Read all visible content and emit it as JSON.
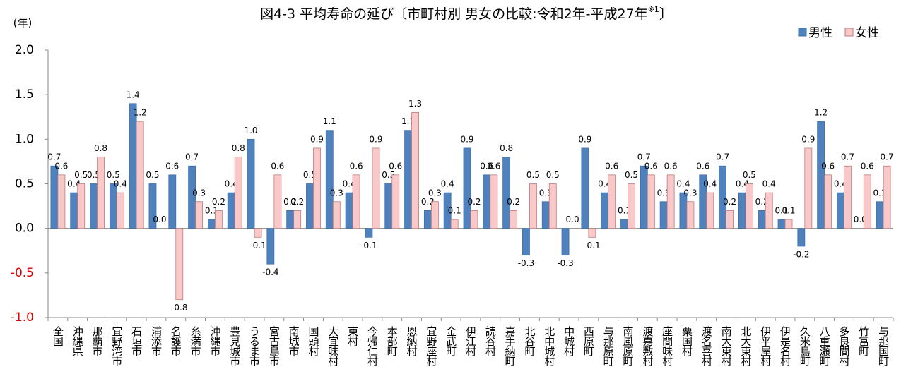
{
  "chart_data": {
    "type": "bar",
    "title": "図4-3 平均寿命の延び〔市町村別 男女の比較:令和2年-平成27年",
    "title_sup": "※1",
    "title_end": "〕",
    "y_label": "(年)",
    "categories": [
      "全国",
      "沖縄県",
      "那覇市",
      "宜野湾市",
      "石垣市",
      "浦添市",
      "名護市",
      "糸満市",
      "沖縄市",
      "豊見城市",
      "うるま市",
      "宮古島市",
      "南城市",
      "国頭村",
      "大宜味村",
      "東村",
      "今帰仁村",
      "本部町",
      "恩納村",
      "宜野座村",
      "金武町",
      "伊江村",
      "読谷村",
      "嘉手納町",
      "北谷町",
      "北中城村",
      "中城村",
      "西原町",
      "与那原町",
      "南風原町",
      "渡嘉敷村",
      "座間味村",
      "粟国村",
      "渡名喜村",
      "南大東村",
      "北大東村",
      "伊平屋村",
      "伊是名村",
      "久米島町",
      "八重瀬町",
      "多良間村",
      "竹富町",
      "与那国町"
    ],
    "series": [
      {
        "name": "男性",
        "color": "#4f81bd",
        "values": [
          0.7,
          0.4,
          0.5,
          0.5,
          1.4,
          0.5,
          0.6,
          0.7,
          0.1,
          0.4,
          1.0,
          -0.4,
          0.2,
          0.5,
          1.1,
          0.4,
          -0.1,
          0.5,
          1.1,
          0.2,
          0.4,
          0.9,
          0.6,
          0.8,
          -0.3,
          0.3,
          -0.3,
          0.9,
          0.4,
          0.1,
          0.7,
          0.3,
          0.4,
          0.6,
          0.7,
          0.4,
          0.2,
          0.1,
          -0.2,
          1.2,
          0.4,
          0.0,
          0.3
        ],
        "value_labels": [
          "0.7",
          "0.4",
          "0.5",
          "0.5",
          "1.4",
          "0.5",
          "0.6",
          "0.7",
          "0.1",
          "0.4",
          "1.0",
          "-0.4",
          "0.2",
          "0.5",
          "1.1",
          "0.4",
          "-0.1",
          "0.5",
          "1.1",
          "0.2",
          "0.4",
          "0.9",
          "0.6",
          "0.8",
          "-0.3",
          "0.3",
          "-0.3",
          "0.9",
          "0.4",
          "0.1",
          "0.7",
          "0.3",
          "0.4",
          "0.6",
          "0.7",
          "0.4",
          "0.2",
          "0.1",
          "-0.2",
          "1.2",
          "0.4",
          "0.0",
          "0.3"
        ]
      },
      {
        "name": "女性",
        "color": "#f9c9c9",
        "values": [
          0.6,
          0.5,
          0.8,
          0.4,
          1.2,
          0.0,
          -0.8,
          0.3,
          0.2,
          0.8,
          -0.1,
          0.6,
          0.2,
          0.9,
          0.3,
          0.6,
          0.9,
          0.6,
          1.3,
          0.3,
          0.1,
          0.2,
          0.6,
          0.2,
          0.5,
          0.5,
          0.0,
          -0.1,
          0.6,
          0.5,
          0.6,
          0.6,
          0.3,
          0.4,
          0.2,
          0.5,
          0.4,
          0.1,
          0.9,
          0.6,
          0.7,
          0.6,
          0.7
        ],
        "value_labels": [
          "0.6",
          "0.5",
          "0.8",
          "0.4",
          "1.2",
          "0.0",
          "-0.8",
          "0.3",
          "0.2",
          "0.8",
          "-0.1",
          "0.6",
          "0.2",
          "0.9",
          "0.3",
          "0.6",
          "0.9",
          "0.6",
          "1.3",
          "0.3",
          "0.1",
          "0.2",
          "0.6",
          "0.2",
          "0.5",
          "0.5",
          "0.0",
          "-0.1",
          "0.6",
          "0.5",
          "0.6",
          "0.6",
          "0.3",
          "0.4",
          "0.2",
          "0.5",
          "0.4",
          "0.1",
          "0.9",
          "0.6",
          "0.7",
          "0.6",
          "0.7"
        ]
      }
    ],
    "ylim": [
      -1.0,
      2.0
    ],
    "yticks": [
      {
        "value": -1,
        "label": "-1.0"
      },
      {
        "value": -0.5,
        "label": "-0.5"
      },
      {
        "value": 0,
        "label": "0.0"
      },
      {
        "value": 0.5,
        "label": "0.5"
      },
      {
        "value": 1,
        "label": "1.0"
      },
      {
        "value": 1.5,
        "label": "1.5"
      },
      {
        "value": 2,
        "label": "2.0"
      }
    ],
    "legend": "top-right"
  }
}
